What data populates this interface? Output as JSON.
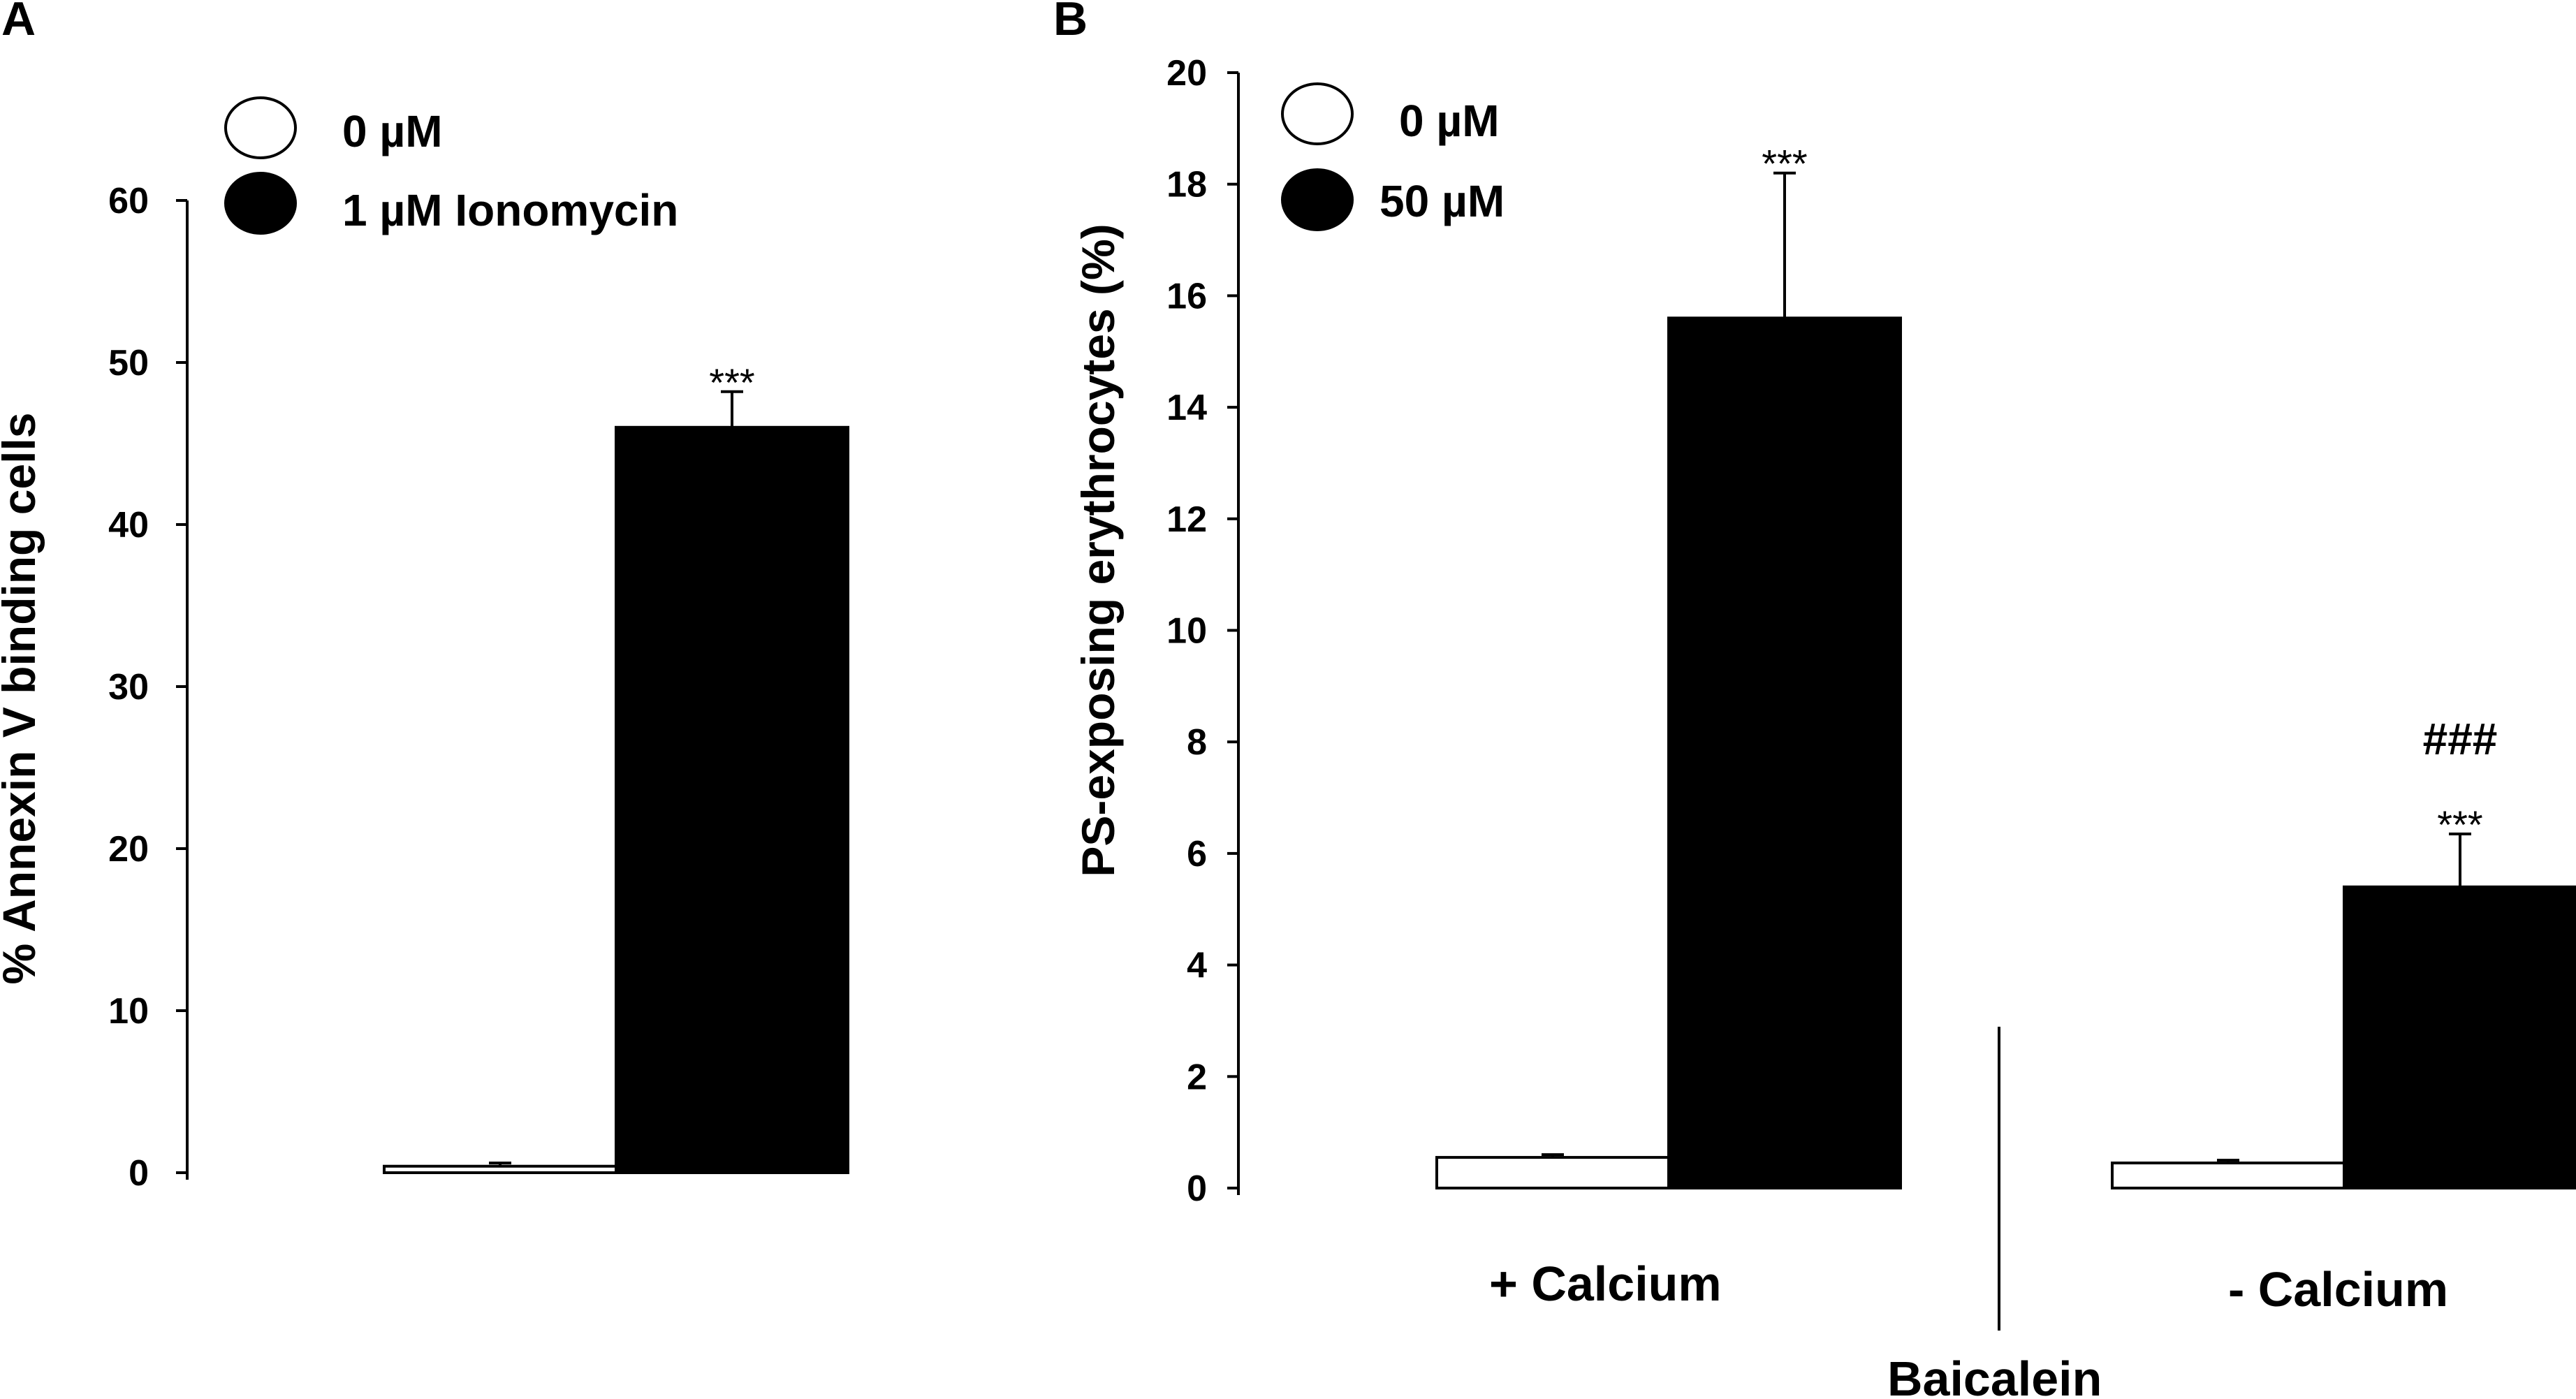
{
  "colors": {
    "background": "#ffffff",
    "bar_control": "#ffffff",
    "bar_treated": "#000000",
    "stroke": "#000000"
  },
  "chart_data": [
    {
      "panel": "A",
      "type": "bar",
      "ylabel": "% Annexin V binding cells",
      "ylim": [
        0,
        60
      ],
      "yticks": [
        0,
        10,
        20,
        30,
        40,
        50,
        60
      ],
      "categories": [
        ""
      ],
      "legend_placement": "top-left",
      "series": [
        {
          "name": "0 µM",
          "color": "#ffffff",
          "values": [
            0.4
          ],
          "errors": [
            0.2
          ],
          "annotations": [
            ""
          ]
        },
        {
          "name": "1 µM Ionomycin",
          "color": "#000000",
          "values": [
            46
          ],
          "errors": [
            2.2
          ],
          "annotations": [
            "***"
          ]
        }
      ]
    },
    {
      "panel": "B",
      "type": "bar",
      "ylabel": "PS-exposing erythrocytes (%)",
      "xlabel": "Baicalein",
      "ylim": [
        0,
        20
      ],
      "yticks": [
        0,
        2,
        4,
        6,
        8,
        10,
        12,
        14,
        16,
        18,
        20
      ],
      "categories": [
        "+ Calcium",
        "- Calcium"
      ],
      "legend_placement": "top-left",
      "series": [
        {
          "name": "0 µM",
          "color": "#ffffff",
          "values": [
            0.55,
            0.45
          ],
          "errors": [
            0.05,
            0.05
          ],
          "annotations": [
            "",
            ""
          ]
        },
        {
          "name": "50 µM",
          "color": "#000000",
          "values": [
            15.6,
            5.4
          ],
          "errors": [
            2.6,
            0.95
          ],
          "annotations": [
            "***",
            "###\n***"
          ]
        }
      ]
    }
  ]
}
